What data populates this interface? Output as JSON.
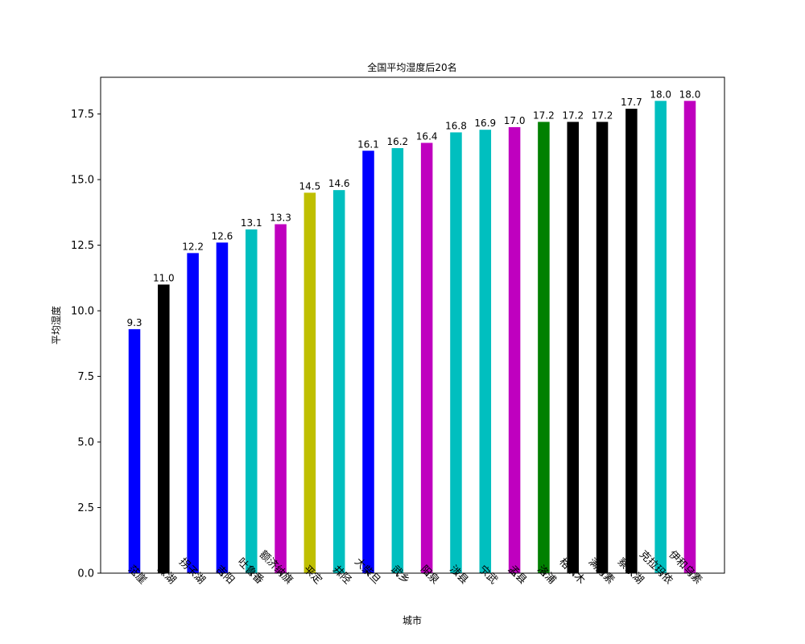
{
  "chart_data": {
    "type": "bar",
    "title": "全国平均湿度后20名",
    "xlabel": "城市",
    "ylabel": "平均湿度",
    "categories": [
      "茫崖",
      "冷湖",
      "拐子湖",
      "吉阳",
      "吐鲁番",
      "额济纳旗",
      "平定",
      "井陉",
      "大柴旦",
      "武乡",
      "阳泉",
      "涉县",
      "宁武",
      "孟县",
      "洛浦",
      "格尔木",
      "满力素",
      "察家湖",
      "克拉玛依",
      "伊和乌素"
    ],
    "values": [
      9.3,
      11.0,
      12.2,
      12.6,
      13.1,
      13.3,
      14.5,
      14.6,
      16.1,
      16.2,
      16.4,
      16.8,
      16.9,
      17.0,
      17.2,
      17.2,
      17.2,
      17.7,
      18.0,
      18.0
    ],
    "value_labels": [
      "9.3",
      "11.0",
      "12.2",
      "12.6",
      "13.1",
      "13.3",
      "14.5",
      "14.6",
      "16.1",
      "16.2",
      "16.4",
      "16.8",
      "16.9",
      "17.0",
      "17.2",
      "17.2",
      "17.2",
      "17.7",
      "18.0",
      "18.0"
    ],
    "colors": [
      "#0000ff",
      "#000000",
      "#0000ff",
      "#0000ff",
      "#00bfbf",
      "#bf00bf",
      "#bfbf00",
      "#00bfbf",
      "#0000ff",
      "#00bfbf",
      "#bf00bf",
      "#00bfbf",
      "#00bfbf",
      "#bf00bf",
      "#008000",
      "#000000",
      "#000000",
      "#000000",
      "#00bfbf",
      "#bf00bf"
    ],
    "ylim": [
      0,
      18.9
    ],
    "yticks": [
      0.0,
      2.5,
      5.0,
      7.5,
      10.0,
      12.5,
      15.0,
      17.5
    ],
    "ytick_labels": [
      "0.0",
      "2.5",
      "5.0",
      "7.5",
      "10.0",
      "12.5",
      "15.0",
      "17.5"
    ],
    "xtick_rotation": -45,
    "grid": false,
    "legend": false
  }
}
